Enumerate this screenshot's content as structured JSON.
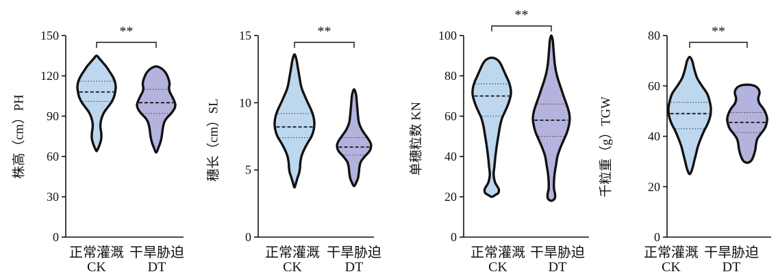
{
  "chart_data": [
    {
      "type": "violin",
      "ylabel": "株高（cm）PH",
      "ylim": [
        0,
        150
      ],
      "yticks": [
        0,
        30,
        60,
        90,
        120,
        150
      ],
      "significance": "**",
      "categories": [
        {
          "label": "正常灌溉",
          "code": "CK"
        },
        {
          "label": "干旱胁迫",
          "code": "DT"
        }
      ],
      "series": [
        {
          "category": "CK",
          "color": "#bdd7ee",
          "min": 64,
          "max": 135,
          "q1": 101,
          "median": 108,
          "q3": 116,
          "density": [
            [
              135,
              0
            ],
            [
              133,
              0.14
            ],
            [
              130,
              0.32
            ],
            [
              127,
              0.5
            ],
            [
              124,
              0.64
            ],
            [
              120,
              0.82
            ],
            [
              116,
              0.95
            ],
            [
              112,
              1.0
            ],
            [
              108,
              0.97
            ],
            [
              104,
              0.9
            ],
            [
              100,
              0.76
            ],
            [
              96,
              0.55
            ],
            [
              93,
              0.4
            ],
            [
              90,
              0.3
            ],
            [
              86,
              0.22
            ],
            [
              82,
              0.2
            ],
            [
              78,
              0.24
            ],
            [
              74,
              0.25
            ],
            [
              71,
              0.21
            ],
            [
              68,
              0.14
            ],
            [
              66,
              0.08
            ],
            [
              64,
              0
            ]
          ]
        },
        {
          "category": "DT",
          "color": "#b4b3de",
          "min": 63,
          "max": 127,
          "q1": 92,
          "median": 100,
          "q3": 110,
          "density": [
            [
              127,
              0
            ],
            [
              126,
              0.22
            ],
            [
              124,
              0.4
            ],
            [
              121,
              0.55
            ],
            [
              117,
              0.66
            ],
            [
              114,
              0.7
            ],
            [
              111,
              0.67
            ],
            [
              108,
              0.71
            ],
            [
              105,
              0.82
            ],
            [
              101,
              0.95
            ],
            [
              98,
              1.0
            ],
            [
              95,
              0.93
            ],
            [
              92,
              0.78
            ],
            [
              89,
              0.58
            ],
            [
              86,
              0.44
            ],
            [
              82,
              0.36
            ],
            [
              78,
              0.32
            ],
            [
              74,
              0.28
            ],
            [
              70,
              0.21
            ],
            [
              67,
              0.13
            ],
            [
              63,
              0
            ]
          ]
        }
      ]
    },
    {
      "type": "violin",
      "ylabel": "穗长（cm）SL",
      "ylim": [
        0,
        15
      ],
      "yticks": [
        0,
        5,
        10,
        15
      ],
      "significance": "**",
      "categories": [
        {
          "label": "正常灌溉",
          "code": "CK"
        },
        {
          "label": "干旱胁迫",
          "code": "DT"
        }
      ],
      "series": [
        {
          "category": "CK",
          "color": "#bdd7ee",
          "min": 3.7,
          "max": 13.6,
          "q1": 7.4,
          "median": 8.2,
          "q3": 9.2,
          "density": [
            [
              13.6,
              0
            ],
            [
              13.2,
              0.1
            ],
            [
              12.6,
              0.17
            ],
            [
              12,
              0.24
            ],
            [
              11.4,
              0.31
            ],
            [
              11,
              0.38
            ],
            [
              10.5,
              0.52
            ],
            [
              10,
              0.67
            ],
            [
              9.5,
              0.83
            ],
            [
              9,
              0.95
            ],
            [
              8.5,
              1.0
            ],
            [
              8,
              0.97
            ],
            [
              7.5,
              0.86
            ],
            [
              7,
              0.66
            ],
            [
              6.5,
              0.48
            ],
            [
              6,
              0.35
            ],
            [
              5.5,
              0.29
            ],
            [
              5.2,
              0.28
            ],
            [
              4.8,
              0.24
            ],
            [
              4.4,
              0.15
            ],
            [
              4,
              0.07
            ],
            [
              3.7,
              0
            ]
          ]
        },
        {
          "category": "DT",
          "color": "#b4b3de",
          "min": 3.8,
          "max": 11,
          "q1": 6.1,
          "median": 6.7,
          "q3": 7.4,
          "density": [
            [
              11,
              0
            ],
            [
              10.6,
              0.1
            ],
            [
              10,
              0.14
            ],
            [
              9.5,
              0.17
            ],
            [
              9,
              0.2
            ],
            [
              8.5,
              0.25
            ],
            [
              8,
              0.39
            ],
            [
              7.5,
              0.62
            ],
            [
              7.1,
              0.8
            ],
            [
              6.8,
              0.86
            ],
            [
              6.4,
              0.78
            ],
            [
              6,
              0.54
            ],
            [
              5.6,
              0.34
            ],
            [
              5.2,
              0.27
            ],
            [
              4.8,
              0.24
            ],
            [
              4.4,
              0.2
            ],
            [
              4.1,
              0.12
            ],
            [
              3.8,
              0
            ]
          ]
        }
      ]
    },
    {
      "type": "violin",
      "ylabel": "单穗粒数 KN",
      "ylim": [
        0,
        100
      ],
      "yticks": [
        0,
        20,
        40,
        60,
        80,
        100
      ],
      "significance": "**",
      "categories": [
        {
          "label": "正常灌溉",
          "code": "CK"
        },
        {
          "label": "干旱胁迫",
          "code": "DT"
        }
      ],
      "series": [
        {
          "category": "CK",
          "color": "#bdd7ee",
          "min": 20,
          "max": 89,
          "q1": 60,
          "median": 70,
          "q3": 76,
          "density": [
            [
              89,
              0
            ],
            [
              88,
              0.29
            ],
            [
              86,
              0.46
            ],
            [
              83,
              0.61
            ],
            [
              80,
              0.75
            ],
            [
              77,
              0.89
            ],
            [
              74,
              0.98
            ],
            [
              71,
              1.0
            ],
            [
              68,
              0.93
            ],
            [
              65,
              0.82
            ],
            [
              62,
              0.68
            ],
            [
              59,
              0.54
            ],
            [
              55,
              0.43
            ],
            [
              51,
              0.36
            ],
            [
              47,
              0.29
            ],
            [
              43,
              0.23
            ],
            [
              39,
              0.18
            ],
            [
              35,
              0.14
            ],
            [
              31,
              0.1
            ],
            [
              27,
              0.18
            ],
            [
              24,
              0.36
            ],
            [
              22,
              0.35
            ],
            [
              21,
              0.2
            ],
            [
              20,
              0
            ]
          ]
        },
        {
          "category": "DT",
          "color": "#b4b3de",
          "min": 18,
          "max": 100,
          "q1": 50,
          "median": 58,
          "q3": 66,
          "density": [
            [
              100,
              0
            ],
            [
              98,
              0.07
            ],
            [
              95,
              0.1
            ],
            [
              90,
              0.14
            ],
            [
              86,
              0.18
            ],
            [
              82,
              0.25
            ],
            [
              78,
              0.36
            ],
            [
              74,
              0.5
            ],
            [
              70,
              0.64
            ],
            [
              66,
              0.79
            ],
            [
              62,
              0.92
            ],
            [
              59,
              0.96
            ],
            [
              56,
              0.93
            ],
            [
              52,
              0.82
            ],
            [
              48,
              0.64
            ],
            [
              44,
              0.46
            ],
            [
              40,
              0.32
            ],
            [
              36,
              0.25
            ],
            [
              32,
              0.18
            ],
            [
              28,
              0.14
            ],
            [
              24,
              0.14
            ],
            [
              21,
              0.2
            ],
            [
              19,
              0.17
            ],
            [
              18,
              0
            ]
          ]
        }
      ]
    },
    {
      "type": "violin",
      "ylabel": "千粒重（g）TGW",
      "ylim": [
        0,
        80
      ],
      "yticks": [
        0,
        20,
        40,
        60,
        80
      ],
      "significance": "**",
      "categories": [
        {
          "label": "正常灌溉",
          "code": "CK"
        },
        {
          "label": "干旱胁迫",
          "code": "DT"
        }
      ],
      "series": [
        {
          "category": "CK",
          "color": "#bdd7ee",
          "min": 25,
          "max": 71.5,
          "q1": 43,
          "median": 49,
          "q3": 53.5,
          "density": [
            [
              71.5,
              0
            ],
            [
              70,
              0.12
            ],
            [
              68,
              0.18
            ],
            [
              66,
              0.24
            ],
            [
              63,
              0.36
            ],
            [
              60,
              0.58
            ],
            [
              57,
              0.82
            ],
            [
              54,
              0.94
            ],
            [
              51,
              1.0
            ],
            [
              48,
              0.97
            ],
            [
              45,
              0.85
            ],
            [
              42,
              0.67
            ],
            [
              39,
              0.52
            ],
            [
              36,
              0.39
            ],
            [
              33,
              0.3
            ],
            [
              30,
              0.21
            ],
            [
              27,
              0.12
            ],
            [
              25,
              0
            ]
          ]
        },
        {
          "category": "DT",
          "color": "#b4b3de",
          "min": 29.5,
          "max": 60.5,
          "q1": 41.5,
          "median": 45.5,
          "q3": 49.5,
          "density": [
            [
              60.5,
              0
            ],
            [
              60,
              0.36
            ],
            [
              58.5,
              0.55
            ],
            [
              57,
              0.58
            ],
            [
              55,
              0.52
            ],
            [
              53,
              0.58
            ],
            [
              51,
              0.76
            ],
            [
              49,
              0.88
            ],
            [
              47,
              0.94
            ],
            [
              45,
              0.91
            ],
            [
              43,
              0.82
            ],
            [
              41,
              0.64
            ],
            [
              39,
              0.48
            ],
            [
              37,
              0.42
            ],
            [
              35,
              0.39
            ],
            [
              33,
              0.33
            ],
            [
              31,
              0.24
            ],
            [
              30,
              0.15
            ],
            [
              29.5,
              0
            ]
          ]
        }
      ]
    }
  ]
}
